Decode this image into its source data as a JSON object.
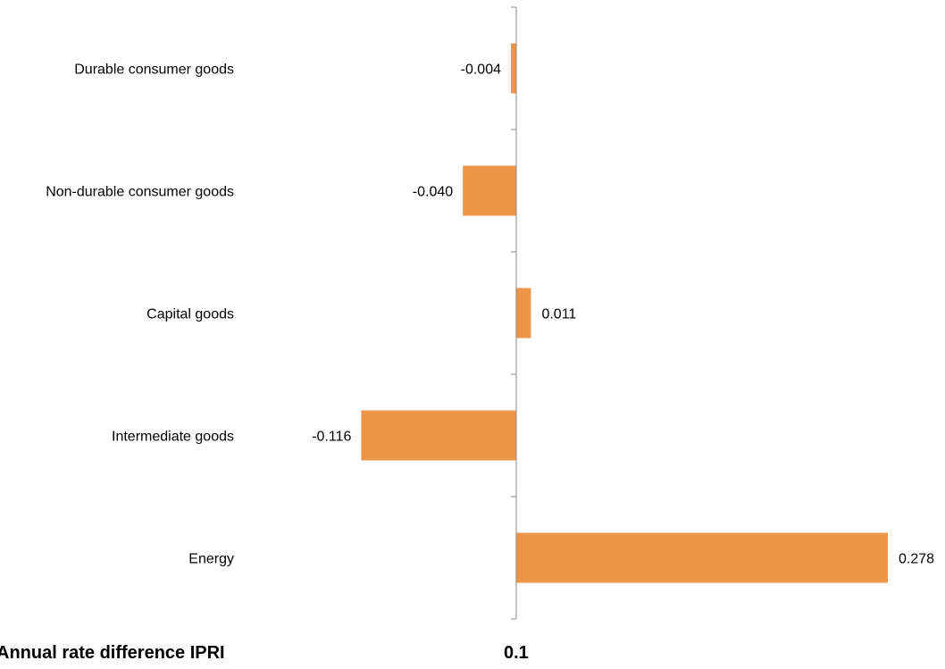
{
  "chart_data": {
    "type": "bar",
    "orientation": "horizontal",
    "categories": [
      "Durable consumer goods",
      "Non-durable consumer goods",
      "Capital goods",
      "Intermediate goods",
      "Energy"
    ],
    "values": [
      -0.004,
      -0.04,
      0.011,
      -0.116,
      0.278
    ],
    "value_labels": [
      "-0.004",
      "-0.040",
      "0.011",
      "-0.116",
      "0.278"
    ],
    "xlim": [
      -0.116,
      0.278
    ],
    "grid": false,
    "legend": "none",
    "colors": {
      "bar": "#ED9548",
      "axis": "#888888"
    }
  },
  "footer": {
    "label": "Annual rate difference IPRI",
    "value": "0.1"
  }
}
